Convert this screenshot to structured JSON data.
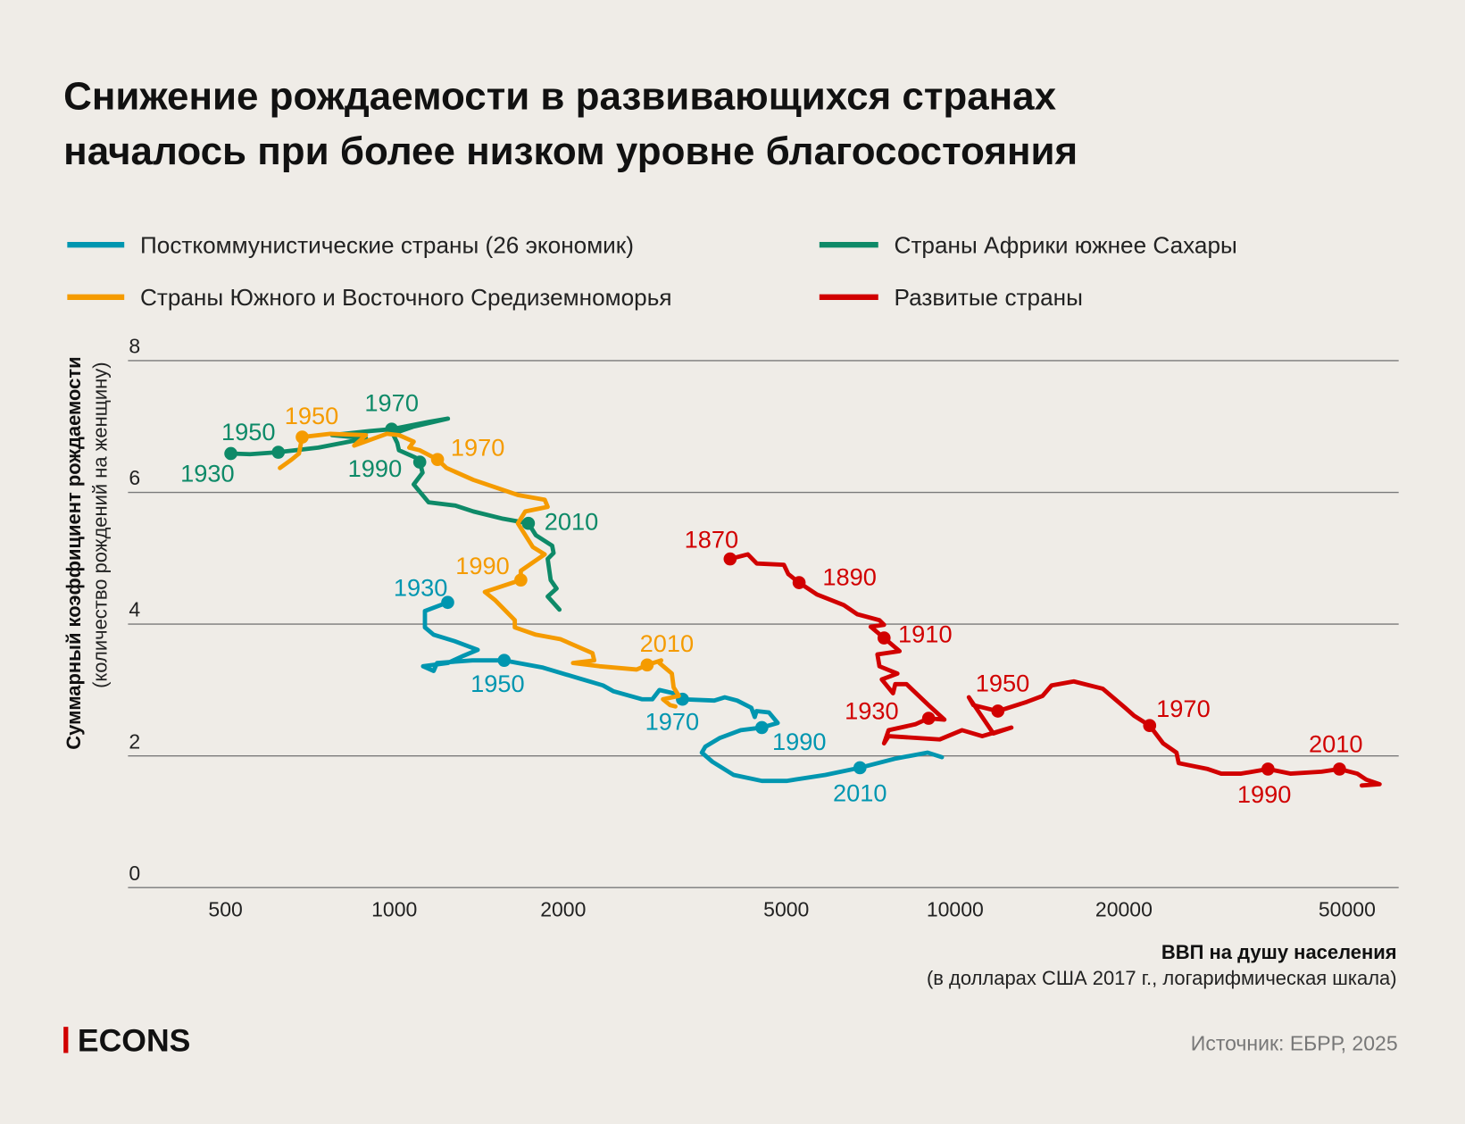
{
  "title": {
    "line1": "Снижение рождаемости в развивающихся странах",
    "line2": "началось при более низком уровне благосостояния"
  },
  "legend": {
    "postcommunist": "Посткоммунистические страны (26 экономик)",
    "africa": "Страны Африки южнее Сахары",
    "mediterranean": "Страны Южного и Восточного Средиземноморья",
    "developed": "Развитые страны"
  },
  "axes": {
    "y_title": "Суммарный коэффициент рождаемости",
    "y_sub": "(количество рождений на женщину)",
    "x_title": "ВВП на душу населения",
    "x_sub": "(в долларах США 2017 г., логарифмическая шкала)"
  },
  "logo": "ECONS",
  "source": "Источник: ЕБРР, 2025",
  "colors": {
    "postcommunist": "#0096b0",
    "africa": "#0e8a68",
    "mediterranean": "#f59b00",
    "developed": "#d10000",
    "background": "#efece7"
  },
  "chart_data": {
    "type": "line",
    "x_scale": "log",
    "xlim": [
      335,
      61800
    ],
    "ylim": [
      0,
      8
    ],
    "xticks": [
      500,
      1000,
      2000,
      5000,
      10000,
      20000,
      50000
    ],
    "yticks": [
      0,
      2,
      4,
      6,
      8
    ],
    "grid": "horizontal",
    "legend_placement": "top",
    "series": [
      {
        "key": "postcommunist",
        "name": "Посткоммунистические страны (26 экономик)",
        "points": [
          [
            1245,
            4.33
          ],
          [
            1134,
            4.2
          ],
          [
            1134,
            3.95
          ],
          [
            1175,
            3.84
          ],
          [
            1282,
            3.74
          ],
          [
            1408,
            3.61
          ],
          [
            1329,
            3.52
          ],
          [
            1245,
            3.41
          ],
          [
            1125,
            3.36
          ],
          [
            1175,
            3.29
          ],
          [
            1192,
            3.41
          ],
          [
            1378,
            3.45
          ],
          [
            1570,
            3.45
          ],
          [
            1841,
            3.34
          ],
          [
            2128,
            3.18
          ],
          [
            2356,
            3.07
          ],
          [
            2460,
            2.98
          ],
          [
            2763,
            2.86
          ],
          [
            2885,
            2.86
          ],
          [
            2970,
            3.0
          ],
          [
            3148,
            2.95
          ],
          [
            3264,
            2.86
          ],
          [
            3720,
            2.84
          ],
          [
            3884,
            2.89
          ],
          [
            4087,
            2.84
          ],
          [
            4330,
            2.73
          ],
          [
            4393,
            2.59
          ],
          [
            4425,
            2.68
          ],
          [
            4656,
            2.66
          ],
          [
            4827,
            2.5
          ],
          [
            4522,
            2.43
          ],
          [
            4146,
            2.39
          ],
          [
            3801,
            2.27
          ],
          [
            3586,
            2.14
          ],
          [
            3535,
            2.05
          ],
          [
            3692,
            1.91
          ],
          [
            4027,
            1.71
          ],
          [
            4522,
            1.62
          ],
          [
            5005,
            1.62
          ],
          [
            5870,
            1.71
          ],
          [
            6766,
            1.82
          ],
          [
            7842,
            1.96
          ],
          [
            8934,
            2.05
          ],
          [
            9470,
            1.98
          ]
        ],
        "labels": [
          [
            1930,
            1245,
            4.33
          ],
          [
            1950,
            1570,
            3.45
          ],
          [
            1970,
            3264,
            2.86
          ],
          [
            1990,
            4522,
            2.43
          ],
          [
            2010,
            6766,
            1.82
          ]
        ]
      },
      {
        "key": "africa",
        "name": "Страны Африки южнее Сахары",
        "points": [
          [
            511,
            6.59
          ],
          [
            553,
            6.58
          ],
          [
            621,
            6.61
          ],
          [
            732,
            6.68
          ],
          [
            890,
            6.82
          ],
          [
            774,
            6.87
          ],
          [
            902,
            6.93
          ],
          [
            989,
            6.96
          ],
          [
            1151,
            7.07
          ],
          [
            1246,
            7.12
          ],
          [
            1083,
            7.0
          ],
          [
            994,
            6.89
          ],
          [
            1012,
            6.75
          ],
          [
            1019,
            6.64
          ],
          [
            1090,
            6.53
          ],
          [
            1110,
            6.46
          ],
          [
            1123,
            6.3
          ],
          [
            1083,
            6.12
          ],
          [
            1151,
            5.85
          ],
          [
            1285,
            5.8
          ],
          [
            1383,
            5.71
          ],
          [
            1562,
            5.6
          ],
          [
            1734,
            5.53
          ],
          [
            1788,
            5.35
          ],
          [
            1912,
            5.19
          ],
          [
            1923,
            5.08
          ],
          [
            1877,
            4.99
          ],
          [
            1900,
            4.67
          ],
          [
            1947,
            4.54
          ],
          [
            1877,
            4.42
          ],
          [
            1970,
            4.22
          ]
        ],
        "labels": [
          [
            1930,
            511,
            6.59
          ],
          [
            1950,
            621,
            6.61
          ],
          [
            1970,
            989,
            6.96
          ],
          [
            1990,
            1110,
            6.46
          ],
          [
            2010,
            1734,
            5.53
          ]
        ]
      },
      {
        "key": "mediterranean",
        "name": "Страны Южного и Восточного Средиземноморья",
        "points": [
          [
            625,
            6.37
          ],
          [
            656,
            6.5
          ],
          [
            676,
            6.59
          ],
          [
            681,
            6.73
          ],
          [
            685,
            6.84
          ],
          [
            769,
            6.89
          ],
          [
            890,
            6.87
          ],
          [
            848,
            6.71
          ],
          [
            970,
            6.89
          ],
          [
            1019,
            6.87
          ],
          [
            1083,
            6.77
          ],
          [
            1063,
            6.68
          ],
          [
            1110,
            6.64
          ],
          [
            1194,
            6.5
          ],
          [
            1239,
            6.37
          ],
          [
            1383,
            6.19
          ],
          [
            1661,
            5.96
          ],
          [
            1854,
            5.89
          ],
          [
            1877,
            5.78
          ],
          [
            1712,
            5.71
          ],
          [
            1661,
            5.53
          ],
          [
            1766,
            5.17
          ],
          [
            1854,
            5.06
          ],
          [
            1681,
            4.81
          ],
          [
            1681,
            4.67
          ],
          [
            1450,
            4.49
          ],
          [
            1514,
            4.36
          ],
          [
            1640,
            4.06
          ],
          [
            1640,
            3.95
          ],
          [
            1788,
            3.84
          ],
          [
            1980,
            3.77
          ],
          [
            2256,
            3.56
          ],
          [
            2272,
            3.45
          ],
          [
            2083,
            3.41
          ],
          [
            2322,
            3.36
          ],
          [
            2704,
            3.31
          ],
          [
            2824,
            3.38
          ],
          [
            2992,
            3.45
          ],
          [
            2970,
            3.41
          ],
          [
            3125,
            3.25
          ],
          [
            3148,
            3.04
          ],
          [
            3217,
            2.91
          ],
          [
            3014,
            2.86
          ],
          [
            3103,
            2.77
          ],
          [
            3171,
            2.75
          ]
        ],
        "labels": [
          [
            1950,
            685,
            6.84
          ],
          [
            1970,
            1194,
            6.5
          ],
          [
            1990,
            1681,
            4.67
          ],
          [
            2010,
            2824,
            3.38
          ]
        ]
      },
      {
        "key": "developed",
        "name": "Развитые страны",
        "points": [
          [
            3970,
            4.99
          ],
          [
            4270,
            5.06
          ],
          [
            4430,
            4.92
          ],
          [
            4950,
            4.9
          ],
          [
            5040,
            4.76
          ],
          [
            5270,
            4.63
          ],
          [
            5670,
            4.45
          ],
          [
            6330,
            4.29
          ],
          [
            6690,
            4.15
          ],
          [
            7330,
            4.06
          ],
          [
            7470,
            3.99
          ],
          [
            7070,
            3.96
          ],
          [
            7470,
            3.79
          ],
          [
            7960,
            3.59
          ],
          [
            7270,
            3.54
          ],
          [
            7330,
            3.36
          ],
          [
            7890,
            3.25
          ],
          [
            7400,
            3.16
          ],
          [
            7750,
            2.95
          ],
          [
            7820,
            3.09
          ],
          [
            8190,
            3.09
          ],
          [
            8970,
            2.77
          ],
          [
            9570,
            2.55
          ],
          [
            8970,
            2.57
          ],
          [
            8490,
            2.48
          ],
          [
            7610,
            2.39
          ],
          [
            7470,
            2.19
          ],
          [
            7610,
            2.3
          ],
          [
            9390,
            2.25
          ],
          [
            10290,
            2.39
          ],
          [
            11180,
            2.3
          ],
          [
            12600,
            2.43
          ],
          [
            11700,
            2.34
          ],
          [
            10580,
            2.89
          ],
          [
            10780,
            2.77
          ],
          [
            11920,
            2.68
          ],
          [
            13430,
            2.82
          ],
          [
            14320,
            2.91
          ],
          [
            14860,
            3.07
          ],
          [
            16280,
            3.13
          ],
          [
            18340,
            3.02
          ],
          [
            20100,
            2.73
          ],
          [
            20850,
            2.61
          ],
          [
            22230,
            2.46
          ],
          [
            23490,
            2.19
          ],
          [
            24820,
            2.05
          ],
          [
            25050,
            1.89
          ],
          [
            28220,
            1.8
          ],
          [
            29820,
            1.73
          ],
          [
            32370,
            1.73
          ],
          [
            36140,
            1.8
          ],
          [
            39610,
            1.73
          ],
          [
            45030,
            1.76
          ],
          [
            48470,
            1.8
          ],
          [
            52130,
            1.73
          ],
          [
            54090,
            1.64
          ],
          [
            57150,
            1.57
          ],
          [
            53100,
            1.55
          ]
        ],
        "labels": [
          [
            1870,
            3970,
            4.99
          ],
          [
            1890,
            5270,
            4.63
          ],
          [
            1910,
            7470,
            3.79
          ],
          [
            1930,
            8970,
            2.57
          ],
          [
            1950,
            11920,
            2.68
          ],
          [
            1970,
            22230,
            2.46
          ],
          [
            1990,
            36140,
            1.8
          ],
          [
            2010,
            48470,
            1.8
          ]
        ]
      }
    ]
  }
}
